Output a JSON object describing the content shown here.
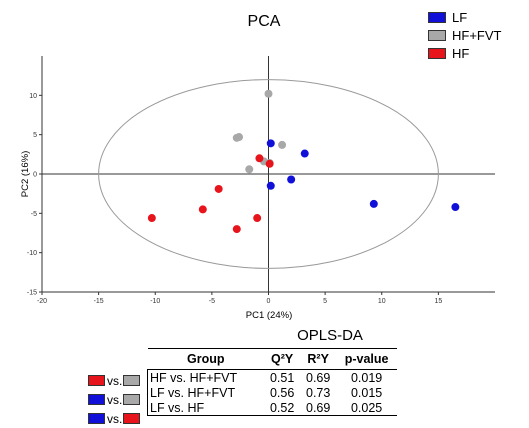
{
  "chart_data": {
    "type": "scatter",
    "title": "PCA",
    "xlabel": "PC1 (24%)",
    "ylabel": "PC2 (16%)",
    "xlim": [
      -20,
      20
    ],
    "ylim": [
      -15,
      15
    ],
    "xticks": [
      -20,
      -15,
      -10,
      -5,
      0,
      5,
      10,
      15
    ],
    "yticks": [
      10,
      5,
      0,
      -5,
      -10,
      -15
    ],
    "ellipse": {
      "cx": 0,
      "cy": 0,
      "rx": 15,
      "ry": 12
    },
    "legend_position": "top-right",
    "series": [
      {
        "name": "LF",
        "color": "#1010d8",
        "points": [
          [
            0.2,
            3.9
          ],
          [
            3.2,
            2.6
          ],
          [
            2.0,
            -0.7
          ],
          [
            0.2,
            -1.5
          ],
          [
            9.3,
            -3.8
          ],
          [
            16.5,
            -4.2
          ]
        ]
      },
      {
        "name": "HF+FVT",
        "color": "#a8a8a8",
        "points": [
          [
            0.0,
            10.2
          ],
          [
            -2.8,
            4.6
          ],
          [
            -2.6,
            4.7
          ],
          [
            1.2,
            3.7
          ],
          [
            -0.4,
            1.6
          ],
          [
            -1.7,
            0.6
          ],
          [
            0.1,
            1.4
          ]
        ]
      },
      {
        "name": "HF",
        "color": "#e8141c",
        "points": [
          [
            -0.8,
            2.0
          ],
          [
            0.1,
            1.3
          ],
          [
            -4.4,
            -1.9
          ],
          [
            -5.8,
            -4.5
          ],
          [
            -10.3,
            -5.6
          ],
          [
            -1.0,
            -5.6
          ],
          [
            -2.8,
            -7.0
          ]
        ]
      }
    ]
  },
  "opls": {
    "title": "OPLS-DA",
    "headers": {
      "group": "Group",
      "q2y": "Q²Y",
      "r2y": "R²Y",
      "pvalue": "p-value"
    },
    "rows": [
      {
        "group": "HF vs. HF+FVT",
        "q2y": "0.51",
        "r2y": "0.69",
        "pvalue": "0.019",
        "left_color": "#e8141c",
        "right_color": "#a8a8a8"
      },
      {
        "group": "LF vs. HF+FVT",
        "q2y": "0.56",
        "r2y": "0.73",
        "pvalue": "0.015",
        "left_color": "#1010d8",
        "right_color": "#a8a8a8"
      },
      {
        "group": "LF vs. HF",
        "q2y": "0.52",
        "r2y": "0.69",
        "pvalue": "0.025",
        "left_color": "#1010d8",
        "right_color": "#e8141c"
      }
    ],
    "vs_label": "vs."
  }
}
